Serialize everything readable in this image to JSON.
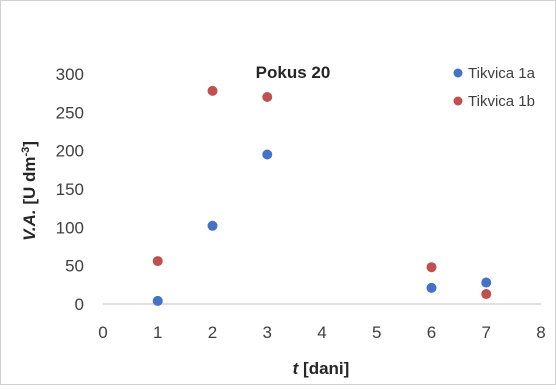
{
  "chart_data": {
    "type": "scatter",
    "title": "Pokus 20",
    "xlabel": {
      "italic": "t",
      "rest": " [dani]"
    },
    "ylabel": {
      "italic": "V.A.",
      "rest": " [U dm",
      "sup": "-3",
      "close": "]"
    },
    "xlim": [
      0,
      8
    ],
    "ylim": [
      0,
      300
    ],
    "xticks": [
      0,
      1,
      2,
      3,
      4,
      5,
      6,
      7,
      8
    ],
    "yticks": [
      0,
      50,
      100,
      150,
      200,
      250,
      300
    ],
    "grid": false,
    "legend_position": "top-right",
    "series": [
      {
        "name": "Tikvica 1a",
        "color": "#4472C4",
        "x": [
          1,
          2,
          3,
          6,
          7
        ],
        "y": [
          4,
          102,
          195,
          21,
          28
        ]
      },
      {
        "name": "Tikvica 1b",
        "color": "#C0504D",
        "x": [
          1,
          2,
          3,
          6,
          7
        ],
        "y": [
          56,
          278,
          270,
          48,
          13
        ]
      }
    ]
  }
}
